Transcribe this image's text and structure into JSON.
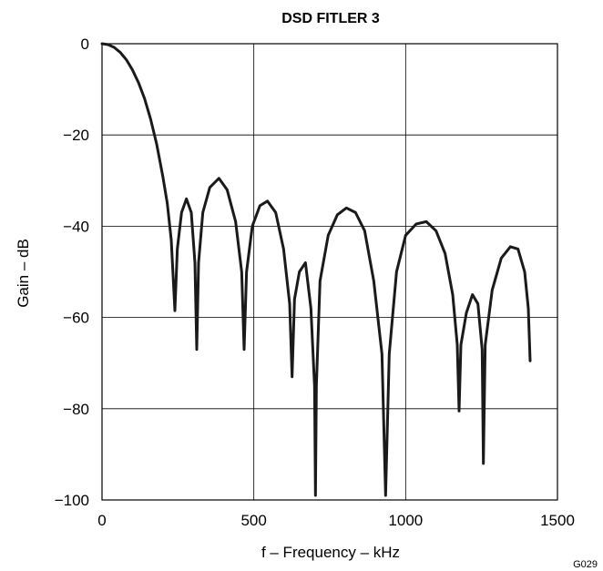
{
  "chart_data": {
    "type": "line",
    "title": "DSD FITLER 3",
    "xlabel": "f – Frequency – kHz",
    "ylabel": "Gain – dB",
    "xlim": [
      0,
      1500
    ],
    "ylim": [
      -100,
      0
    ],
    "x_ticks": [
      0,
      500,
      1000,
      1500
    ],
    "x_tick_labels": [
      "0",
      "500",
      "1000",
      "1500"
    ],
    "y_ticks": [
      0,
      -20,
      -40,
      -60,
      -80,
      -100
    ],
    "y_tick_labels": [
      "0",
      "−20",
      "−40",
      "−60",
      "−80",
      "−100"
    ],
    "grid": true,
    "line_color": "#1a1a1a",
    "note": "G029",
    "series": [
      {
        "x": [
          0,
          20,
          40,
          60,
          80,
          100,
          120,
          140,
          160,
          180,
          200,
          215,
          228,
          235,
          240,
          248,
          262,
          278,
          294,
          306,
          312,
          318,
          332,
          355,
          385,
          412,
          440,
          460,
          468,
          476,
          495,
          520,
          545,
          572,
          598,
          618,
          626,
          634,
          650,
          670,
          688,
          700,
          703,
          706,
          718,
          745,
          775,
          805,
          835,
          865,
          895,
          922,
          934,
          946,
          970,
          1000,
          1035,
          1068,
          1100,
          1130,
          1155,
          1170,
          1176,
          1182,
          1200,
          1220,
          1238,
          1252,
          1256,
          1262,
          1285,
          1315,
          1345,
          1370,
          1392,
          1404,
          1410
        ],
        "y": [
          0,
          -0.2,
          -0.8,
          -1.9,
          -3.5,
          -5.7,
          -8.5,
          -12,
          -16.5,
          -22,
          -29,
          -35,
          -43,
          -52,
          -58.5,
          -45,
          -37,
          -34,
          -37,
          -48,
          -67,
          -48,
          -37,
          -31.5,
          -29.5,
          -32,
          -39,
          -50,
          -67,
          -50,
          -40,
          -35.5,
          -34.5,
          -37,
          -45,
          -57,
          -73,
          -56,
          -50,
          -48,
          -58,
          -75,
          -99,
          -75,
          -52,
          -42,
          -37.5,
          -36,
          -37,
          -41,
          -52,
          -68,
          -99,
          -68,
          -50,
          -42,
          -39.5,
          -39,
          -41,
          -46,
          -55,
          -66,
          -80.5,
          -66,
          -59,
          -55,
          -57,
          -67,
          -92,
          -66,
          -54,
          -47,
          -44.5,
          -45,
          -50,
          -58,
          -69.5
        ]
      }
    ]
  }
}
